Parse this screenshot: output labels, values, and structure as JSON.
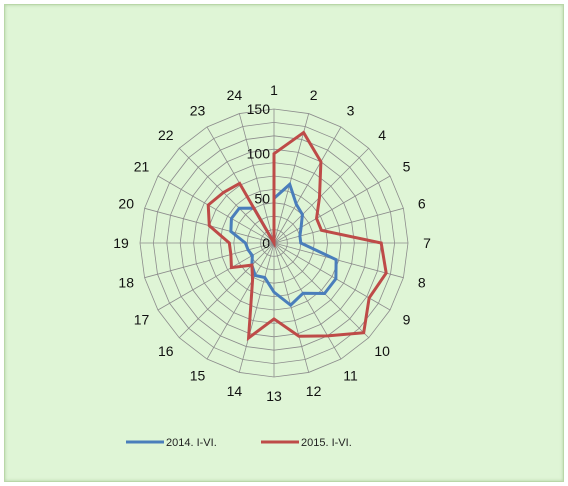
{
  "chart_data": {
    "type": "radar",
    "categories": [
      "1",
      "2",
      "3",
      "4",
      "5",
      "6",
      "7",
      "8",
      "9",
      "10",
      "11",
      "12",
      "13",
      "14",
      "15",
      "16",
      "17",
      "18",
      "19",
      "20",
      "21",
      "22",
      "23",
      "24"
    ],
    "r_ticks": [
      "0",
      "50",
      "100",
      "150"
    ],
    "rlim": [
      0,
      150
    ],
    "grid": true,
    "legend_position": "bottom",
    "series": [
      {
        "name": "2014. I-VI.",
        "color": "#4a7ebb",
        "values": [
          50,
          68,
          50,
          45,
          35,
          30,
          30,
          72,
          80,
          80,
          65,
          72,
          55,
          40,
          42,
          35,
          28,
          30,
          32,
          50,
          55,
          55,
          45,
          0
        ]
      },
      {
        "name": "2015. I-VI.",
        "color": "#be4b48",
        "values": [
          100,
          128,
          105,
          72,
          55,
          55,
          120,
          130,
          123,
          142,
          120,
          108,
          85,
          110,
          48,
          35,
          55,
          50,
          50,
          75,
          85,
          80,
          77,
          0
        ]
      }
    ]
  }
}
